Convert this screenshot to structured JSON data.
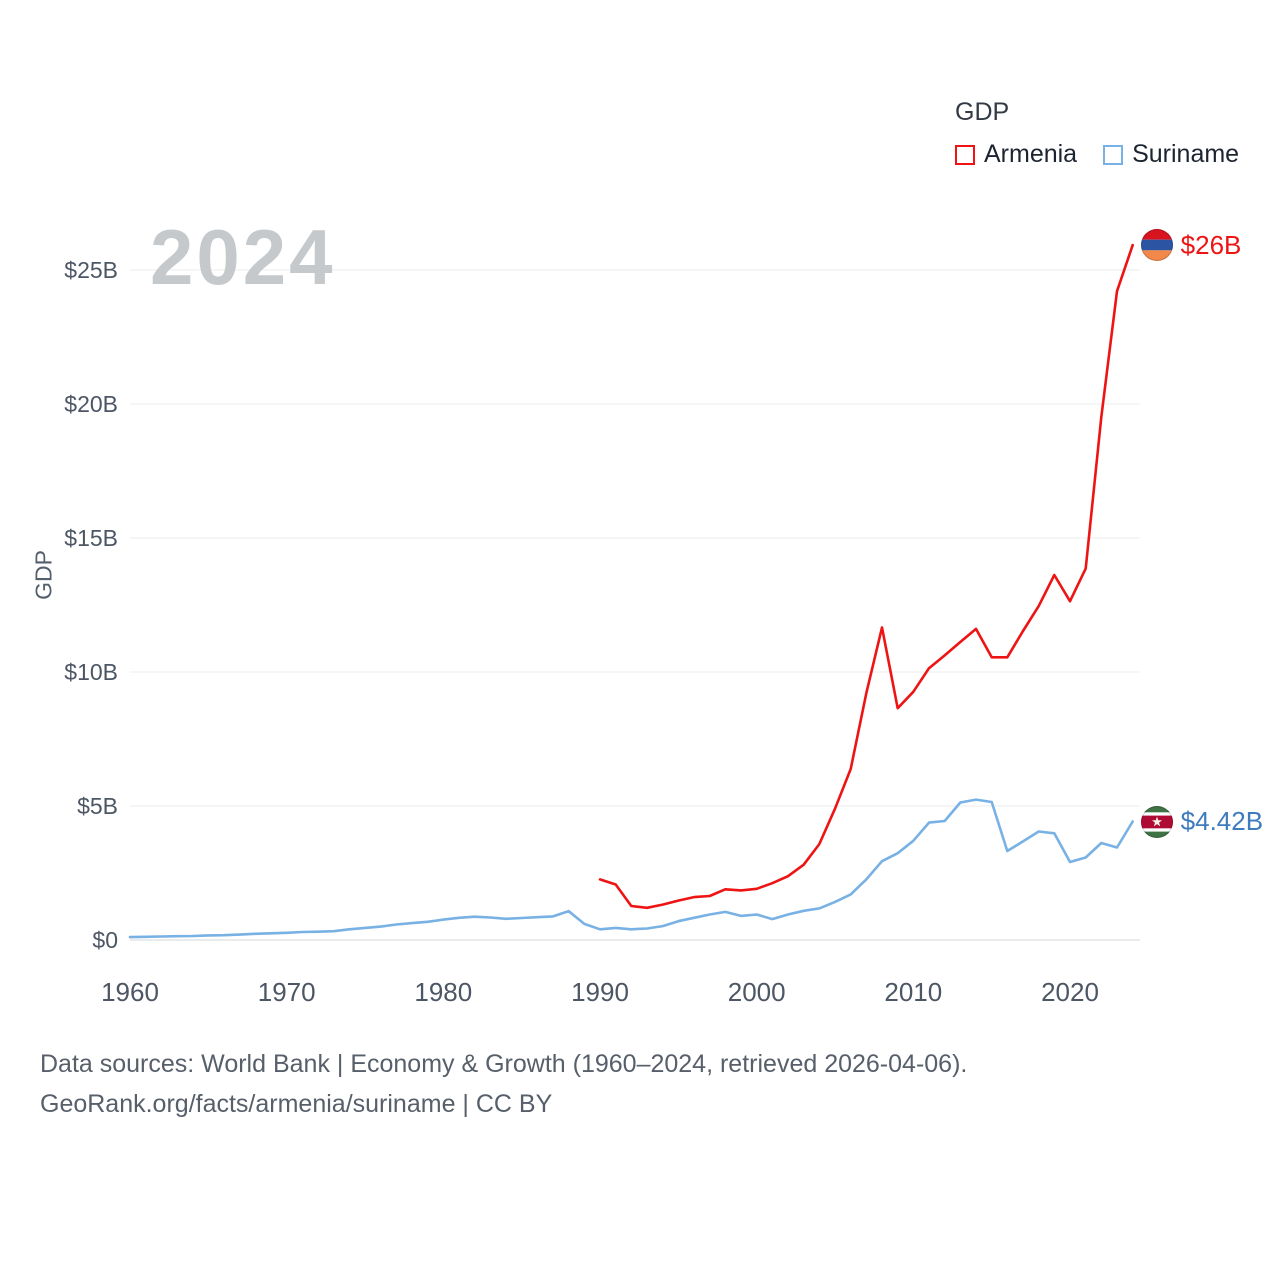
{
  "legend": {
    "title": "GDP",
    "items": [
      {
        "label": "Armenia",
        "color": "#ee1414"
      },
      {
        "label": "Suriname",
        "color": "#78b1e4"
      }
    ]
  },
  "watermark": "2024",
  "y_axis_label": "GDP",
  "end_labels": [
    {
      "series": "Armenia",
      "text": "$26B",
      "color": "#ee1414"
    },
    {
      "series": "Suriname",
      "text": "$4.42B",
      "color": "#3e7cbe"
    }
  ],
  "footer": {
    "line1": "Data sources: World Bank | Economy & Growth (1960–2024, retrieved 2026-04-06).",
    "line2": "GeoRank.org/facts/armenia/suriname | CC BY"
  },
  "chart_data": {
    "type": "line",
    "title": "GDP",
    "xlabel": "",
    "ylabel": "GDP",
    "unit": "USD billions",
    "xlim": [
      1960,
      2024
    ],
    "ylim": [
      0,
      26
    ],
    "grid": true,
    "legend_position": "top-right",
    "x_ticks": [
      1960,
      1970,
      1980,
      1990,
      2000,
      2010,
      2020
    ],
    "y_ticks": [
      0,
      5,
      10,
      15,
      20,
      25
    ],
    "y_tick_labels": [
      "$0",
      "$5B",
      "$10B",
      "$15B",
      "$20B",
      "$25B"
    ],
    "series": [
      {
        "name": "Armenia",
        "color": "#ee1414",
        "points": [
          [
            1990,
            2.26
          ],
          [
            1991,
            2.07
          ],
          [
            1992,
            1.27
          ],
          [
            1993,
            1.2
          ],
          [
            1994,
            1.32
          ],
          [
            1995,
            1.47
          ],
          [
            1996,
            1.6
          ],
          [
            1997,
            1.64
          ],
          [
            1998,
            1.89
          ],
          [
            1999,
            1.85
          ],
          [
            2000,
            1.91
          ],
          [
            2001,
            2.12
          ],
          [
            2002,
            2.38
          ],
          [
            2003,
            2.81
          ],
          [
            2004,
            3.58
          ],
          [
            2005,
            4.9
          ],
          [
            2006,
            6.38
          ],
          [
            2007,
            9.21
          ],
          [
            2008,
            11.66
          ],
          [
            2009,
            8.65
          ],
          [
            2010,
            9.26
          ],
          [
            2011,
            10.14
          ],
          [
            2012,
            10.62
          ],
          [
            2013,
            11.12
          ],
          [
            2014,
            11.61
          ],
          [
            2015,
            10.55
          ],
          [
            2016,
            10.55
          ],
          [
            2017,
            11.53
          ],
          [
            2018,
            12.46
          ],
          [
            2019,
            13.62
          ],
          [
            2020,
            12.64
          ],
          [
            2021,
            13.86
          ],
          [
            2022,
            19.51
          ],
          [
            2023,
            24.21
          ],
          [
            2024,
            25.93
          ]
        ]
      },
      {
        "name": "Suriname",
        "color": "#78b1e4",
        "points": [
          [
            1960,
            0.11
          ],
          [
            1961,
            0.12
          ],
          [
            1962,
            0.13
          ],
          [
            1963,
            0.14
          ],
          [
            1964,
            0.15
          ],
          [
            1965,
            0.17
          ],
          [
            1966,
            0.18
          ],
          [
            1967,
            0.2
          ],
          [
            1968,
            0.23
          ],
          [
            1969,
            0.25
          ],
          [
            1970,
            0.27
          ],
          [
            1971,
            0.3
          ],
          [
            1972,
            0.31
          ],
          [
            1973,
            0.33
          ],
          [
            1974,
            0.4
          ],
          [
            1975,
            0.45
          ],
          [
            1976,
            0.5
          ],
          [
            1977,
            0.58
          ],
          [
            1978,
            0.63
          ],
          [
            1979,
            0.68
          ],
          [
            1980,
            0.76
          ],
          [
            1981,
            0.83
          ],
          [
            1982,
            0.87
          ],
          [
            1983,
            0.84
          ],
          [
            1984,
            0.79
          ],
          [
            1985,
            0.82
          ],
          [
            1986,
            0.85
          ],
          [
            1987,
            0.88
          ],
          [
            1988,
            1.08
          ],
          [
            1989,
            0.6
          ],
          [
            1990,
            0.4
          ],
          [
            1991,
            0.45
          ],
          [
            1992,
            0.4
          ],
          [
            1993,
            0.43
          ],
          [
            1994,
            0.52
          ],
          [
            1995,
            0.7
          ],
          [
            1996,
            0.83
          ],
          [
            1997,
            0.95
          ],
          [
            1998,
            1.05
          ],
          [
            1999,
            0.9
          ],
          [
            2000,
            0.95
          ],
          [
            2001,
            0.78
          ],
          [
            2002,
            0.95
          ],
          [
            2003,
            1.09
          ],
          [
            2004,
            1.18
          ],
          [
            2005,
            1.42
          ],
          [
            2006,
            1.7
          ],
          [
            2007,
            2.26
          ],
          [
            2008,
            2.94
          ],
          [
            2009,
            3.24
          ],
          [
            2010,
            3.7
          ],
          [
            2011,
            4.38
          ],
          [
            2012,
            4.44
          ],
          [
            2013,
            5.13
          ],
          [
            2014,
            5.24
          ],
          [
            2015,
            5.15
          ],
          [
            2016,
            3.32
          ],
          [
            2017,
            3.68
          ],
          [
            2018,
            4.05
          ],
          [
            2019,
            3.98
          ],
          [
            2020,
            2.91
          ],
          [
            2021,
            3.08
          ],
          [
            2022,
            3.62
          ],
          [
            2023,
            3.45
          ],
          [
            2024,
            4.42
          ]
        ]
      }
    ]
  }
}
